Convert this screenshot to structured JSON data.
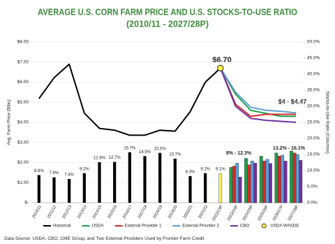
{
  "chart_data": {
    "type": "combo",
    "title": "AVERAGE U.S. CORN FARM PRICE AND U.S. STOCKS-TO-USE RATIO",
    "subtitle": "(2010/11 - 2027/28P)",
    "y_label": "Avg. Farm Price ($/bu)",
    "y2_label": "Stocks-to-Use Ratio (Columns)",
    "categories": [
      "2010/11",
      "2011/12",
      "2012/13",
      "2013/14",
      "2014/15",
      "2015/16",
      "2016/17",
      "2017/18",
      "2018/19",
      "2019/20",
      "2020/21",
      "2021/22",
      "2022/23P",
      "2023/24P",
      "2024/25P",
      "2025/26P",
      "2026/27P",
      "2027/28P"
    ],
    "ylim": [
      0,
      8
    ],
    "yticks": [
      {
        "value": 0,
        "label": "$-"
      },
      {
        "value": 1,
        "label": "$1.00"
      },
      {
        "value": 2,
        "label": "$2.00"
      },
      {
        "value": 3,
        "label": "$3.00"
      },
      {
        "value": 4,
        "label": "$4.00"
      },
      {
        "value": 5,
        "label": "$5.00"
      },
      {
        "value": 6,
        "label": "$6.00"
      },
      {
        "value": 7,
        "label": "$7.00"
      },
      {
        "value": 8,
        "label": "$8.00"
      }
    ],
    "y2lim": [
      0,
      50
    ],
    "y2ticks": [
      {
        "value": 0,
        "label": "0.0%"
      },
      {
        "value": 5,
        "label": "5.0%"
      },
      {
        "value": 10,
        "label": "10.0%"
      },
      {
        "value": 15,
        "label": "15.0%"
      },
      {
        "value": 20,
        "label": "20.0%"
      },
      {
        "value": 25,
        "label": "25.0%"
      },
      {
        "value": 30,
        "label": "30.0%"
      },
      {
        "value": 35,
        "label": "35.0%"
      },
      {
        "value": 40,
        "label": "40.0%"
      },
      {
        "value": 45,
        "label": "45.0%"
      },
      {
        "value": 50,
        "label": "50.0%"
      }
    ],
    "grid": true,
    "series": [
      {
        "name": "Historical",
        "color": "#000000",
        "price": [
          5.18,
          6.22,
          6.89,
          4.46,
          3.7,
          3.61,
          3.36,
          3.36,
          3.61,
          3.56,
          4.53,
          6.0,
          null,
          null,
          null,
          null,
          null,
          null
        ],
        "stocks_to_use": [
          8.6,
          7.9,
          7.4,
          9.2,
          12.6,
          12.7,
          15.7,
          14.5,
          15.5,
          13.7,
          8.3,
          9.2,
          null,
          null,
          null,
          null,
          null,
          null
        ],
        "value_labels": [
          "8.6%",
          "7.9%",
          "7.4%",
          "9.2%",
          "12.6%",
          "12.7%",
          "15.7%",
          "14.5%",
          "15.5%",
          "13.7%",
          "8.3%",
          "9.2%",
          null,
          null,
          null,
          null,
          null,
          null
        ]
      },
      {
        "name": "USDA",
        "color": "#1e9e4a",
        "price": [
          null,
          null,
          null,
          null,
          null,
          null,
          null,
          null,
          null,
          null,
          null,
          null,
          null,
          5.4,
          4.6,
          4.45,
          4.3,
          4.3
        ],
        "stocks_to_use": [
          null,
          null,
          null,
          null,
          null,
          null,
          null,
          null,
          null,
          null,
          null,
          null,
          null,
          11.0,
          13.8,
          14.5,
          15.5,
          16.1
        ]
      },
      {
        "name": "External Provider 1",
        "color": "#d62b2b",
        "price": [
          null,
          null,
          null,
          null,
          null,
          null,
          null,
          null,
          null,
          null,
          null,
          null,
          null,
          4.9,
          4.3,
          4.4,
          4.4,
          4.4
        ],
        "stocks_to_use": [
          null,
          null,
          null,
          null,
          null,
          null,
          null,
          null,
          null,
          null,
          null,
          null,
          null,
          11.4,
          11.8,
          13.0,
          14.5,
          15.5
        ]
      },
      {
        "name": "External Provider 2",
        "color": "#5b9fd6",
        "price": [
          null,
          null,
          null,
          null,
          null,
          null,
          null,
          null,
          null,
          null,
          null,
          null,
          null,
          5.5,
          4.75,
          4.6,
          4.55,
          4.47
        ],
        "stocks_to_use": [
          null,
          null,
          null,
          null,
          null,
          null,
          null,
          null,
          null,
          null,
          null,
          null,
          null,
          12.3,
          13.0,
          13.5,
          14.8,
          15.0
        ]
      },
      {
        "name": "CBO",
        "color": "#7030a0",
        "price": [
          null,
          null,
          null,
          null,
          null,
          null,
          null,
          null,
          null,
          null,
          null,
          null,
          null,
          4.8,
          4.2,
          4.1,
          4.05,
          4.0
        ],
        "stocks_to_use": [
          null,
          null,
          null,
          null,
          null,
          null,
          null,
          null,
          null,
          null,
          null,
          null,
          null,
          8.0,
          12.3,
          12.2,
          13.0,
          13.2
        ]
      },
      {
        "name": "USDA WASDE",
        "color": "#fff04a",
        "price": [
          null,
          null,
          null,
          null,
          null,
          null,
          null,
          null,
          null,
          null,
          null,
          null,
          6.7,
          null,
          null,
          null,
          null,
          null
        ],
        "stocks_to_use": [
          null,
          null,
          null,
          null,
          null,
          null,
          null,
          null,
          null,
          null,
          null,
          null,
          9.1,
          null,
          null,
          null,
          null,
          null
        ],
        "value_labels": [
          null,
          null,
          null,
          null,
          null,
          null,
          null,
          null,
          null,
          null,
          null,
          null,
          "9.1%",
          null,
          null,
          null,
          null,
          null
        ]
      }
    ],
    "annotations": [
      "$6.70",
      "$4 - $4.47",
      "8% - 12.3%",
      "13.2% - 16.1%"
    ],
    "source": "Data Source: USDA, CBO, CME Group, and Two External Providers Used by Frontier Farm Credit"
  }
}
